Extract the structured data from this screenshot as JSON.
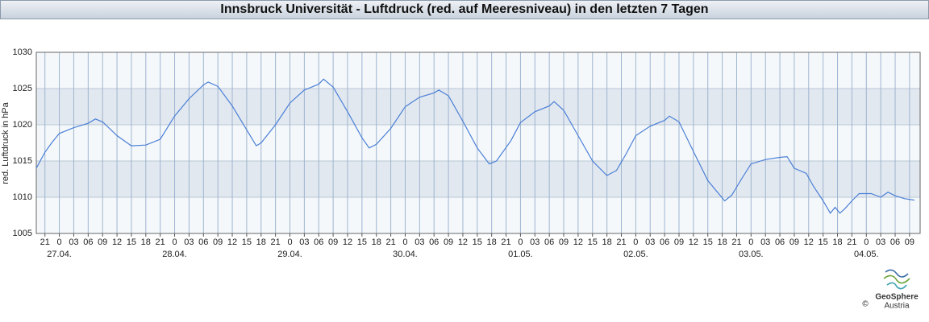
{
  "chart_data": {
    "type": "line",
    "title": "Innsbruck Universität - Luftdruck (red. auf Meeresniveau) in den letzten 7 Tagen",
    "ylabel": "red. Luftdruck in hPa",
    "x": [
      -4.8,
      -3,
      -1.5,
      0,
      3,
      6,
      7.5,
      9,
      12,
      15,
      18,
      21,
      24,
      27,
      30,
      31,
      33,
      36,
      39,
      41,
      42,
      45,
      48,
      51,
      54,
      55,
      57,
      60,
      63,
      64.5,
      66,
      69,
      72,
      75,
      78,
      79,
      81,
      84,
      87,
      89.5,
      91,
      94,
      96,
      99,
      102,
      103,
      105,
      108,
      111,
      114,
      116,
      118,
      120,
      123,
      126,
      127,
      129,
      132,
      135,
      138.5,
      140,
      142,
      144,
      147,
      150,
      151.5,
      153,
      155.5,
      157,
      159,
      160.5,
      161.5,
      162.5,
      163.5,
      165,
      166.5,
      169,
      171,
      172.5,
      174,
      176,
      178
    ],
    "series": [
      {
        "name": "Luftdruck",
        "color": "#4a7fd6",
        "values": [
          1014.0,
          1016.2,
          1017.6,
          1018.8,
          1019.6,
          1020.2,
          1020.8,
          1020.4,
          1018.5,
          1017.1,
          1017.2,
          1018.0,
          1021.2,
          1023.6,
          1025.5,
          1025.9,
          1025.3,
          1022.6,
          1019.3,
          1017.1,
          1017.5,
          1020.0,
          1023.0,
          1024.8,
          1025.6,
          1026.3,
          1025.2,
          1021.8,
          1018.2,
          1016.8,
          1017.3,
          1019.5,
          1022.5,
          1023.8,
          1024.4,
          1024.8,
          1024.0,
          1020.5,
          1016.8,
          1014.6,
          1015.0,
          1017.8,
          1020.3,
          1021.8,
          1022.6,
          1023.2,
          1022.0,
          1018.5,
          1015.0,
          1013.0,
          1013.7,
          1016.0,
          1018.5,
          1019.8,
          1020.6,
          1021.2,
          1020.4,
          1016.3,
          1012.3,
          1009.5,
          1010.3,
          1012.5,
          1014.6,
          1015.2,
          1015.5,
          1015.6,
          1014.0,
          1013.3,
          1011.5,
          1009.5,
          1007.8,
          1008.6,
          1007.8,
          1008.4,
          1009.5,
          1010.5,
          1010.5,
          1010.0,
          1010.7,
          1010.2,
          1009.8,
          1009.6
        ]
      }
    ],
    "xlim": [
      -4.8,
      179.2
    ],
    "xticks": [
      {
        "value": -3,
        "label": "21"
      },
      {
        "value": 0,
        "label": "0"
      },
      {
        "value": 3,
        "label": "03"
      },
      {
        "value": 6,
        "label": "06"
      },
      {
        "value": 9,
        "label": "09"
      },
      {
        "value": 12,
        "label": "12"
      },
      {
        "value": 15,
        "label": "15"
      },
      {
        "value": 18,
        "label": "18"
      },
      {
        "value": 21,
        "label": "21"
      },
      {
        "value": 24,
        "label": "0"
      },
      {
        "value": 27,
        "label": "03"
      },
      {
        "value": 30,
        "label": "06"
      },
      {
        "value": 33,
        "label": "09"
      },
      {
        "value": 36,
        "label": "12"
      },
      {
        "value": 39,
        "label": "15"
      },
      {
        "value": 42,
        "label": "18"
      },
      {
        "value": 45,
        "label": "21"
      },
      {
        "value": 48,
        "label": "0"
      },
      {
        "value": 51,
        "label": "03"
      },
      {
        "value": 54,
        "label": "06"
      },
      {
        "value": 57,
        "label": "09"
      },
      {
        "value": 60,
        "label": "12"
      },
      {
        "value": 63,
        "label": "15"
      },
      {
        "value": 66,
        "label": "18"
      },
      {
        "value": 69,
        "label": "21"
      },
      {
        "value": 72,
        "label": "0"
      },
      {
        "value": 75,
        "label": "03"
      },
      {
        "value": 78,
        "label": "06"
      },
      {
        "value": 81,
        "label": "09"
      },
      {
        "value": 84,
        "label": "12"
      },
      {
        "value": 87,
        "label": "15"
      },
      {
        "value": 90,
        "label": "18"
      },
      {
        "value": 93,
        "label": "21"
      },
      {
        "value": 96,
        "label": "0"
      },
      {
        "value": 99,
        "label": "03"
      },
      {
        "value": 102,
        "label": "06"
      },
      {
        "value": 105,
        "label": "09"
      },
      {
        "value": 108,
        "label": "12"
      },
      {
        "value": 111,
        "label": "15"
      },
      {
        "value": 114,
        "label": "18"
      },
      {
        "value": 117,
        "label": "21"
      },
      {
        "value": 120,
        "label": "0"
      },
      {
        "value": 123,
        "label": "03"
      },
      {
        "value": 126,
        "label": "06"
      },
      {
        "value": 129,
        "label": "09"
      },
      {
        "value": 132,
        "label": "12"
      },
      {
        "value": 135,
        "label": "15"
      },
      {
        "value": 138,
        "label": "18"
      },
      {
        "value": 141,
        "label": "21"
      },
      {
        "value": 144,
        "label": "0"
      },
      {
        "value": 147,
        "label": "03"
      },
      {
        "value": 150,
        "label": "06"
      },
      {
        "value": 153,
        "label": "09"
      },
      {
        "value": 156,
        "label": "12"
      },
      {
        "value": 159,
        "label": "15"
      },
      {
        "value": 162,
        "label": "18"
      },
      {
        "value": 165,
        "label": "21"
      },
      {
        "value": 168,
        "label": "0"
      },
      {
        "value": 171,
        "label": "03"
      },
      {
        "value": 174,
        "label": "06"
      },
      {
        "value": 177,
        "label": "09"
      }
    ],
    "date_ticks": [
      {
        "value": 0,
        "label": "27.04."
      },
      {
        "value": 24,
        "label": "28.04."
      },
      {
        "value": 48,
        "label": "29.04."
      },
      {
        "value": 72,
        "label": "30.04."
      },
      {
        "value": 96,
        "label": "01.05."
      },
      {
        "value": 120,
        "label": "02.05."
      },
      {
        "value": 144,
        "label": "03.05."
      },
      {
        "value": 168,
        "label": "04.05."
      }
    ],
    "ylim": [
      1005,
      1030
    ],
    "yticks": [
      1005,
      1010,
      1015,
      1020,
      1025,
      1030
    ],
    "grid": true
  },
  "footer": {
    "brand": "GeoSphere",
    "sub": "Austria",
    "copyright": "©"
  }
}
